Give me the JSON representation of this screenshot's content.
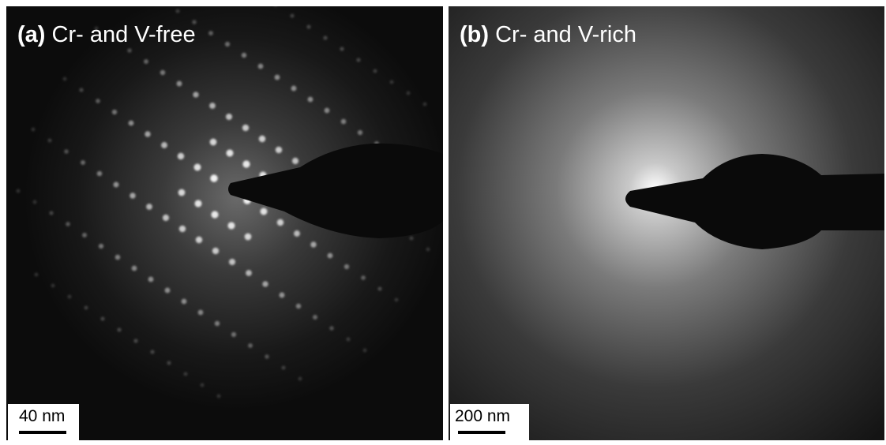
{
  "panels": [
    {
      "tag": "(a)",
      "caption": "Cr- and V-free",
      "scale_bar": "40 nm"
    },
    {
      "tag": "(b)",
      "caption": "Cr- and V-rich",
      "scale_bar": "200 nm"
    }
  ]
}
